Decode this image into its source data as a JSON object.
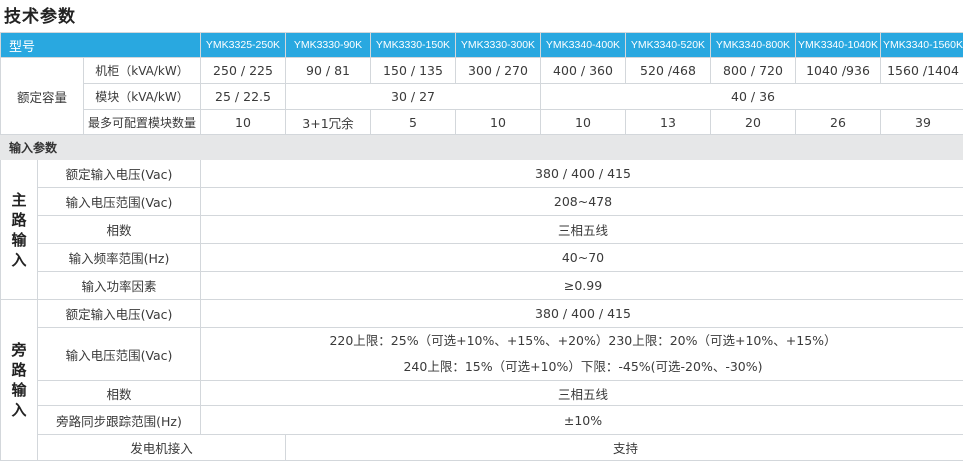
{
  "page_title": "技术参数",
  "header": {
    "label": "型号",
    "models": [
      "YMK3325-250K",
      "YMK3330-90K",
      "YMK3330-150K",
      "YMK3330-300K",
      "YMK3340-400K",
      "YMK3340-520K",
      "YMK3340-800K",
      "YMK3340-1040K",
      "YMK3340-1560K"
    ]
  },
  "rated_capacity": {
    "label": "额定容量",
    "cabinet_label": "机柜（kVA/kW）",
    "cabinet_values": [
      "250 / 225",
      "90 / 81",
      "150 / 135",
      "300 / 270",
      "400 / 360",
      "520 /468",
      "800 / 720",
      "1040 /936",
      "1560 /1404"
    ],
    "module_label": "模块（kVA/kW）",
    "module_values": [
      "25 / 22.5",
      "30 / 27",
      "40 / 36"
    ],
    "max_modules_label": "最多可配置模块数量",
    "max_modules_values": [
      "10",
      "3+1冗余",
      "5",
      "10",
      "10",
      "13",
      "20",
      "26",
      "39"
    ]
  },
  "input_section": {
    "label": "输入参数"
  },
  "main_input": {
    "group_label": [
      "主",
      "路",
      "输",
      "入"
    ],
    "rows": [
      {
        "label": "额定输入电压(Vac)",
        "value": "380 / 400 / 415"
      },
      {
        "label": "输入电压范围(Vac)",
        "value": "208~478"
      },
      {
        "label": "相数",
        "value": "三相五线"
      },
      {
        "label": "输入频率范围(Hz)",
        "value": "40~70"
      },
      {
        "label": "输入功率因素",
        "value": "≥0.99"
      }
    ]
  },
  "bypass_input": {
    "group_label": [
      "旁",
      "路",
      "输",
      "入"
    ],
    "rated_voltage": {
      "label": "额定输入电压(Vac)",
      "value": "380 / 400 / 415"
    },
    "voltage_range": {
      "label": "输入电压范围(Vac)",
      "line1": "220上限：25%（可选+10%、+15%、+20%）230上限：20%（可选+10%、+15%）",
      "line2": "240上限：15%（可选+10%）下限：-45%(可选-20%、-30%)"
    },
    "phases": {
      "label": "相数",
      "value": "三相五线"
    },
    "sync_range": {
      "label": "旁路同步跟踪范围(Hz)",
      "value": "±10%"
    }
  },
  "generator": {
    "label": "发电机接入",
    "value": "支持"
  }
}
